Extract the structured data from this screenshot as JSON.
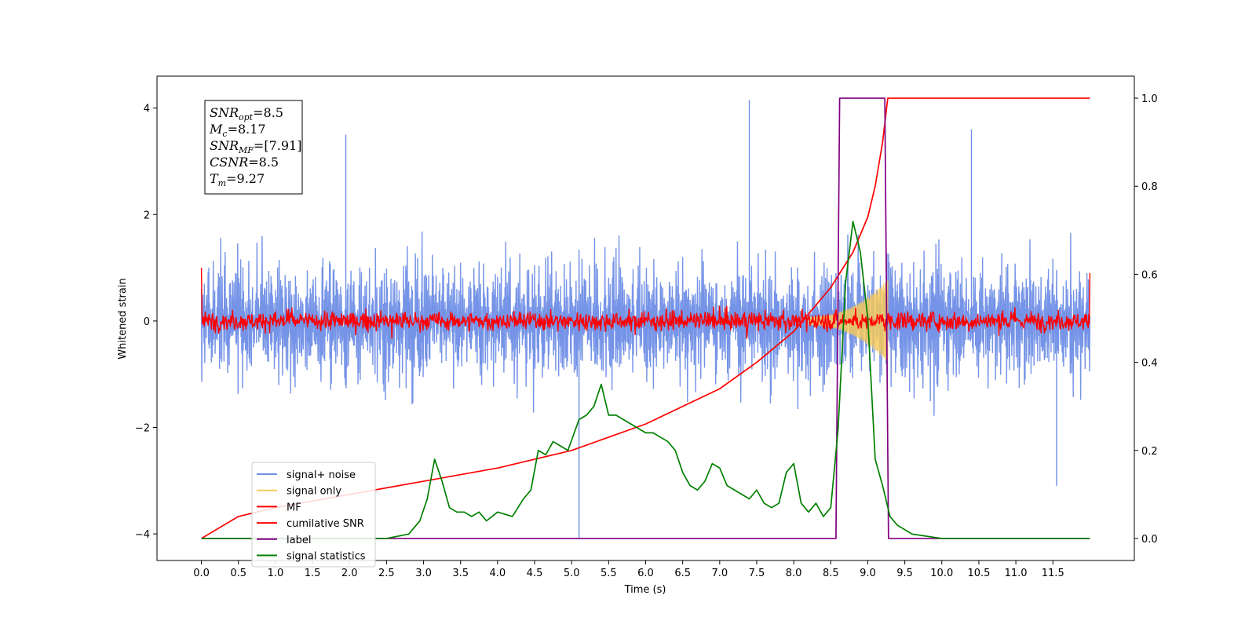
{
  "chart_data": {
    "type": "line",
    "title": "",
    "xlabel": "Time (s)",
    "ylabel": "Whitened strain",
    "y2label": "",
    "xlim": [
      -0.6,
      12.6
    ],
    "ylim": [
      -4.5,
      4.6
    ],
    "y2lim": [
      -0.05,
      1.05
    ],
    "xticks": [
      0.0,
      0.5,
      1.0,
      1.5,
      2.0,
      2.5,
      3.0,
      3.5,
      4.0,
      4.5,
      5.0,
      5.5,
      6.0,
      6.5,
      7.0,
      7.5,
      8.0,
      8.5,
      9.0,
      9.5,
      10.0,
      10.5,
      11.0,
      11.5
    ],
    "xtick_labels": [
      "0.0",
      "0.5",
      "1.0",
      "1.5",
      "2.0",
      "2.5",
      "3.0",
      "3.5",
      "4.0",
      "4.5",
      "5.0",
      "5.5",
      "6.0",
      "6.5",
      "7.0",
      "7.5",
      "8.0",
      "8.5",
      "9.0",
      "9.5",
      "10.0",
      "10.5",
      "11.0",
      "11.5"
    ],
    "yticks": [
      -4,
      -2,
      0,
      2,
      4
    ],
    "ytick_labels": [
      "−4",
      "−2",
      "0",
      "2",
      "4"
    ],
    "y2ticks": [
      0.0,
      0.2,
      0.4,
      0.6,
      0.8,
      1.0
    ],
    "y2tick_labels": [
      "0.0",
      "0.2",
      "0.4",
      "0.6",
      "0.8",
      "1.0"
    ],
    "grid": false,
    "legend_position": "lower-left",
    "legend": [
      {
        "name": "signal+ noise",
        "color": "#6f8ee6"
      },
      {
        "name": "signal only",
        "color": "#f5c95b"
      },
      {
        "name": "MF",
        "color": "#ff0000"
      },
      {
        "name": "cumilative SNR",
        "color": "#ff0000"
      },
      {
        "name": "label",
        "color": "#800080"
      },
      {
        "name": "signal statistics",
        "color": "#008000"
      }
    ],
    "annotation": [
      {
        "name": "SNR",
        "sub": "opt",
        "value": "=8.5"
      },
      {
        "name": "M",
        "sub": "c",
        "value": "=8.17"
      },
      {
        "name": "SNR",
        "sub": "MF",
        "value": "=[7.91]"
      },
      {
        "name": "CSNR",
        "sub": "",
        "value": "=8.5"
      },
      {
        "name": "T",
        "sub": "m",
        "value": "=9.27"
      }
    ],
    "series": [
      {
        "name": "signal+ noise",
        "axis": "left",
        "color": "#6f8ee6",
        "x_range": [
          0.0,
          12.0
        ],
        "band": 1.6,
        "spike_max": 4.15,
        "spike_min": -4.1,
        "spikes": [
          [
            7.4,
            4.15
          ],
          [
            5.1,
            -4.1
          ],
          [
            10.4,
            3.6
          ],
          [
            1.95,
            3.5
          ],
          [
            11.55,
            -3.1
          ]
        ]
      },
      {
        "name": "signal only",
        "axis": "left",
        "color": "#f5c95b",
        "x_range": [
          8.2,
          9.27
        ],
        "envelope_end": 0.7
      },
      {
        "name": "MF",
        "axis": "left",
        "color": "#ff0000",
        "x_range": [
          0.0,
          12.0
        ],
        "band": 0.25,
        "start": 1.0,
        "end": 0.9
      },
      {
        "name": "cumilative SNR",
        "axis": "right",
        "color": "#ff0000",
        "x": [
          0.0,
          0.5,
          1.0,
          2.0,
          3.0,
          4.0,
          5.0,
          6.0,
          7.0,
          7.5,
          8.0,
          8.5,
          8.8,
          9.0,
          9.1,
          9.2,
          9.27,
          9.3,
          12.0
        ],
        "y": [
          0.0,
          0.05,
          0.07,
          0.1,
          0.13,
          0.16,
          0.2,
          0.26,
          0.34,
          0.4,
          0.47,
          0.57,
          0.65,
          0.73,
          0.8,
          0.9,
          1.0,
          1.0,
          1.0
        ]
      },
      {
        "name": "label",
        "axis": "right",
        "color": "#800080",
        "x": [
          0.0,
          8.57,
          8.62,
          9.23,
          9.28,
          12.0
        ],
        "y": [
          0.0,
          0.0,
          1.0,
          1.0,
          0.0,
          0.0
        ]
      },
      {
        "name": "signal statistics",
        "axis": "right",
        "color": "#008000",
        "x": [
          0.0,
          0.5,
          1.0,
          1.5,
          2.0,
          2.5,
          2.8,
          2.95,
          3.05,
          3.15,
          3.25,
          3.35,
          3.45,
          3.55,
          3.65,
          3.75,
          3.85,
          4.0,
          4.2,
          4.35,
          4.45,
          4.55,
          4.65,
          4.75,
          4.85,
          4.95,
          5.1,
          5.2,
          5.3,
          5.4,
          5.5,
          5.6,
          5.7,
          5.8,
          5.9,
          6.0,
          6.1,
          6.2,
          6.3,
          6.4,
          6.5,
          6.6,
          6.7,
          6.8,
          6.9,
          7.0,
          7.1,
          7.2,
          7.3,
          7.4,
          7.5,
          7.6,
          7.7,
          7.8,
          7.9,
          8.0,
          8.1,
          8.2,
          8.3,
          8.4,
          8.5,
          8.6,
          8.7,
          8.8,
          8.9,
          9.0,
          9.1,
          9.2,
          9.3,
          9.4,
          9.6,
          10.0,
          11.0,
          12.0
        ],
        "y": [
          0.0,
          0.0,
          0.0,
          0.0,
          0.0,
          0.0,
          0.01,
          0.04,
          0.09,
          0.18,
          0.13,
          0.07,
          0.06,
          0.06,
          0.05,
          0.06,
          0.04,
          0.06,
          0.05,
          0.09,
          0.11,
          0.2,
          0.19,
          0.22,
          0.21,
          0.2,
          0.27,
          0.28,
          0.3,
          0.35,
          0.28,
          0.28,
          0.27,
          0.26,
          0.25,
          0.24,
          0.24,
          0.23,
          0.22,
          0.2,
          0.15,
          0.12,
          0.11,
          0.13,
          0.17,
          0.16,
          0.12,
          0.11,
          0.1,
          0.09,
          0.11,
          0.08,
          0.07,
          0.08,
          0.15,
          0.17,
          0.08,
          0.06,
          0.08,
          0.05,
          0.07,
          0.25,
          0.58,
          0.72,
          0.65,
          0.5,
          0.18,
          0.12,
          0.05,
          0.03,
          0.01,
          0.0,
          0.0,
          0.0
        ]
      }
    ]
  }
}
